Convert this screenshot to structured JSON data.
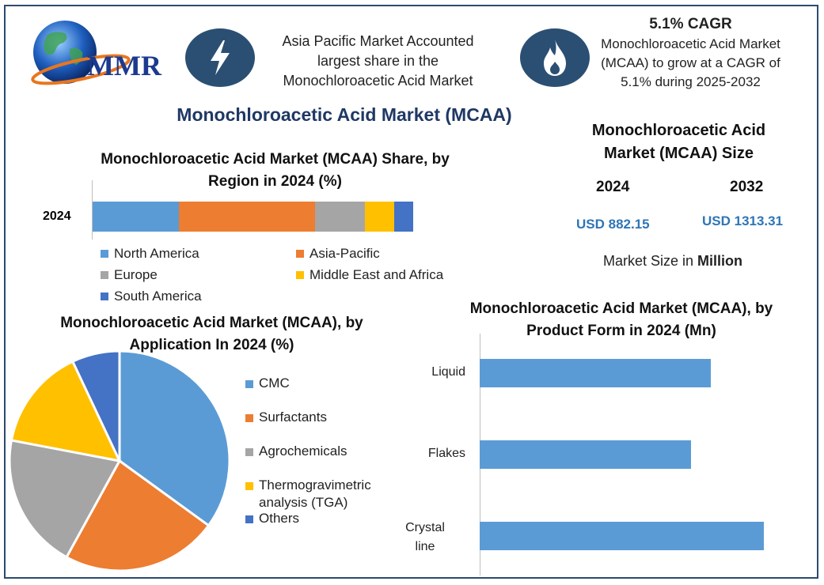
{
  "logo": {
    "text": "MMR"
  },
  "header": {
    "info1": {
      "text": "Asia Pacific Market Accounted largest share in the Monochloroacetic Acid Market",
      "icon": "lightning-bolt-icon"
    },
    "info2": {
      "title": "5.1% CAGR",
      "text": "Monochloroacetic Acid Market (MCAA) to grow at a CAGR of 5.1% during 2025-2032",
      "icon": "flame-icon"
    },
    "main_title": "Monochloroacetic Acid Market (MCAA)"
  },
  "size_panel": {
    "title": "Monochloroacetic Acid Market (MCAA) Size",
    "year1": "2024",
    "year2": "2032",
    "value1": "USD 882.15",
    "value2": "USD 1313.31",
    "note_prefix": "Market Size in ",
    "note_bold": "Million"
  },
  "colors": {
    "north_america": "#5b9bd5",
    "asia_pacific": "#ed7d31",
    "europe": "#a5a5a5",
    "mea": "#ffc000",
    "south_america": "#4472c4",
    "frame": "#2b4a6e",
    "title": "#1f3864"
  },
  "chart_data": [
    {
      "type": "bar",
      "orientation": "horizontal-stacked",
      "title": "Monochloroacetic Acid Market (MCAA) Share, by Region in 2024 (%)",
      "categories": [
        "2024"
      ],
      "series": [
        {
          "name": "North America",
          "values": [
            27
          ],
          "color": "#5b9bd5"
        },
        {
          "name": "Asia-Pacific",
          "values": [
            42.5
          ],
          "color": "#ed7d31"
        },
        {
          "name": "Europe",
          "values": [
            15.5
          ],
          "color": "#a5a5a5"
        },
        {
          "name": "Middle East and Africa",
          "values": [
            9
          ],
          "color": "#ffc000"
        },
        {
          "name": "South America",
          "values": [
            6
          ],
          "color": "#4472c4"
        }
      ],
      "legend": "bottom"
    },
    {
      "type": "pie",
      "title": "Monochloroacetic Acid Market (MCAA), by Application In 2024 (%)",
      "series": [
        {
          "name": "CMC",
          "value": 35,
          "color": "#5b9bd5"
        },
        {
          "name": "Surfactants",
          "value": 23,
          "color": "#ed7d31"
        },
        {
          "name": "Agrochemicals",
          "value": 20,
          "color": "#a5a5a5"
        },
        {
          "name": "Thermogravimetric analysis (TGA)",
          "value": 15,
          "color": "#ffc000"
        },
        {
          "name": "Others",
          "value": 7,
          "color": "#4472c4"
        }
      ],
      "legend": "right"
    },
    {
      "type": "bar",
      "orientation": "horizontal",
      "title": "Monochloroacetic Acid Market (MCAA), by Product Form in 2024 (Mn)",
      "categories": [
        "Liquid",
        "Flakes",
        "Crystalline"
      ],
      "values": [
        292,
        267,
        359
      ],
      "xlim": [
        0,
        400
      ],
      "color": "#5b9bd5"
    }
  ]
}
